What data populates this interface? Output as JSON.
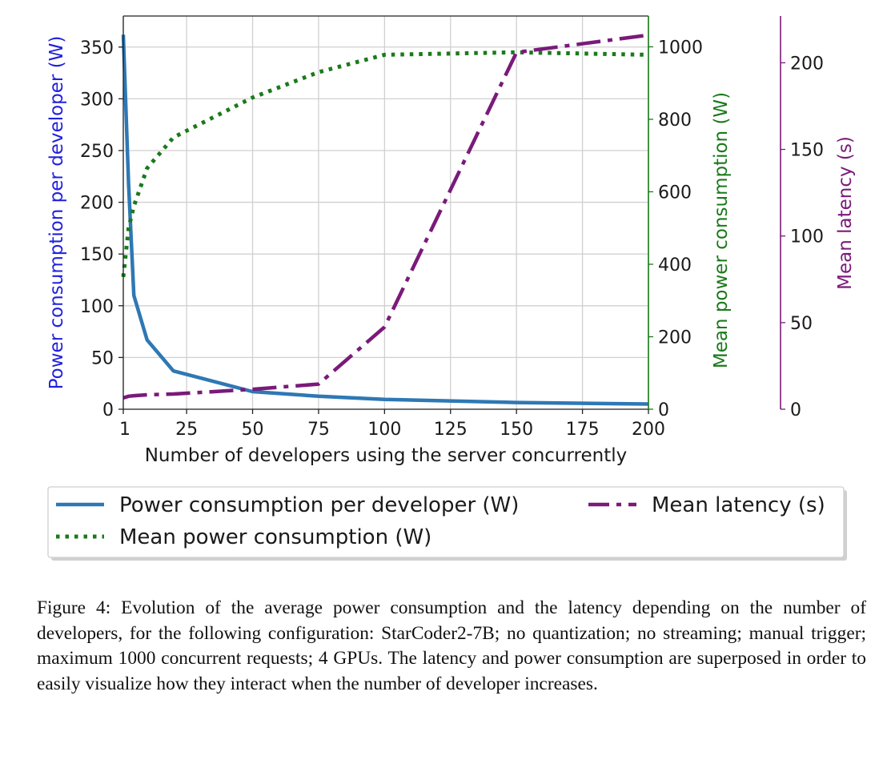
{
  "chart_data": {
    "type": "line",
    "xlabel": "Number of developers using the server concurrently",
    "xlim": [
      1,
      200
    ],
    "xticks": [
      1,
      25,
      50,
      75,
      100,
      125,
      150,
      175,
      200
    ],
    "x": [
      1,
      3,
      5,
      10,
      20,
      50,
      75,
      100,
      150,
      200
    ],
    "axes": {
      "left": {
        "label": "Power consumption per developer (W)",
        "color": "#2020e0",
        "ylim": [
          0,
          380
        ],
        "ticks": [
          0,
          50,
          100,
          150,
          200,
          250,
          300,
          350
        ]
      },
      "right1": {
        "label": "Mean power consumption (W)",
        "color": "#1a7a1a",
        "ylim": [
          0,
          1085
        ],
        "ticks": [
          0,
          200,
          400,
          600,
          800,
          1000
        ]
      },
      "right2": {
        "label": "Mean latency (s)",
        "color": "#7a1a7a",
        "ylim": [
          0,
          227
        ],
        "ticks": [
          0,
          50,
          100,
          150,
          200
        ]
      }
    },
    "series": [
      {
        "name": "Power consumption per developer (W)",
        "axis": "left",
        "color": "#2e78b4",
        "style": "solid",
        "values": [
          362,
          218,
          110,
          67,
          37,
          17,
          12.5,
          9.5,
          6.5,
          5
        ]
      },
      {
        "name": "Mean power consumption (W)",
        "axis": "right1",
        "color": "#1a7a1a",
        "style": "dotted",
        "values": [
          365,
          500,
          560,
          665,
          750,
          860,
          930,
          978,
          985,
          978
        ]
      },
      {
        "name": "Mean latency (s)",
        "axis": "right2",
        "color": "#7a1a7a",
        "style": "dashdot",
        "values": [
          6.5,
          7.5,
          7.8,
          8.3,
          8.8,
          11.5,
          14.5,
          47.5,
          206,
          216
        ]
      }
    ],
    "grid": true,
    "legend": {
      "placement": "bottom",
      "columns": 2,
      "order": [
        0,
        2,
        1
      ]
    }
  },
  "caption": "Figure 4: Evolution of the average power consumption and the latency depending on the number of developers, for the following configuration: StarCoder2-7B; no quantization; no streaming; manual trigger; maximum 1000 concurrent requests; 4 GPUs. The latency and power consumption are superposed in order to easily visualize how they interact when the number of developer increases."
}
